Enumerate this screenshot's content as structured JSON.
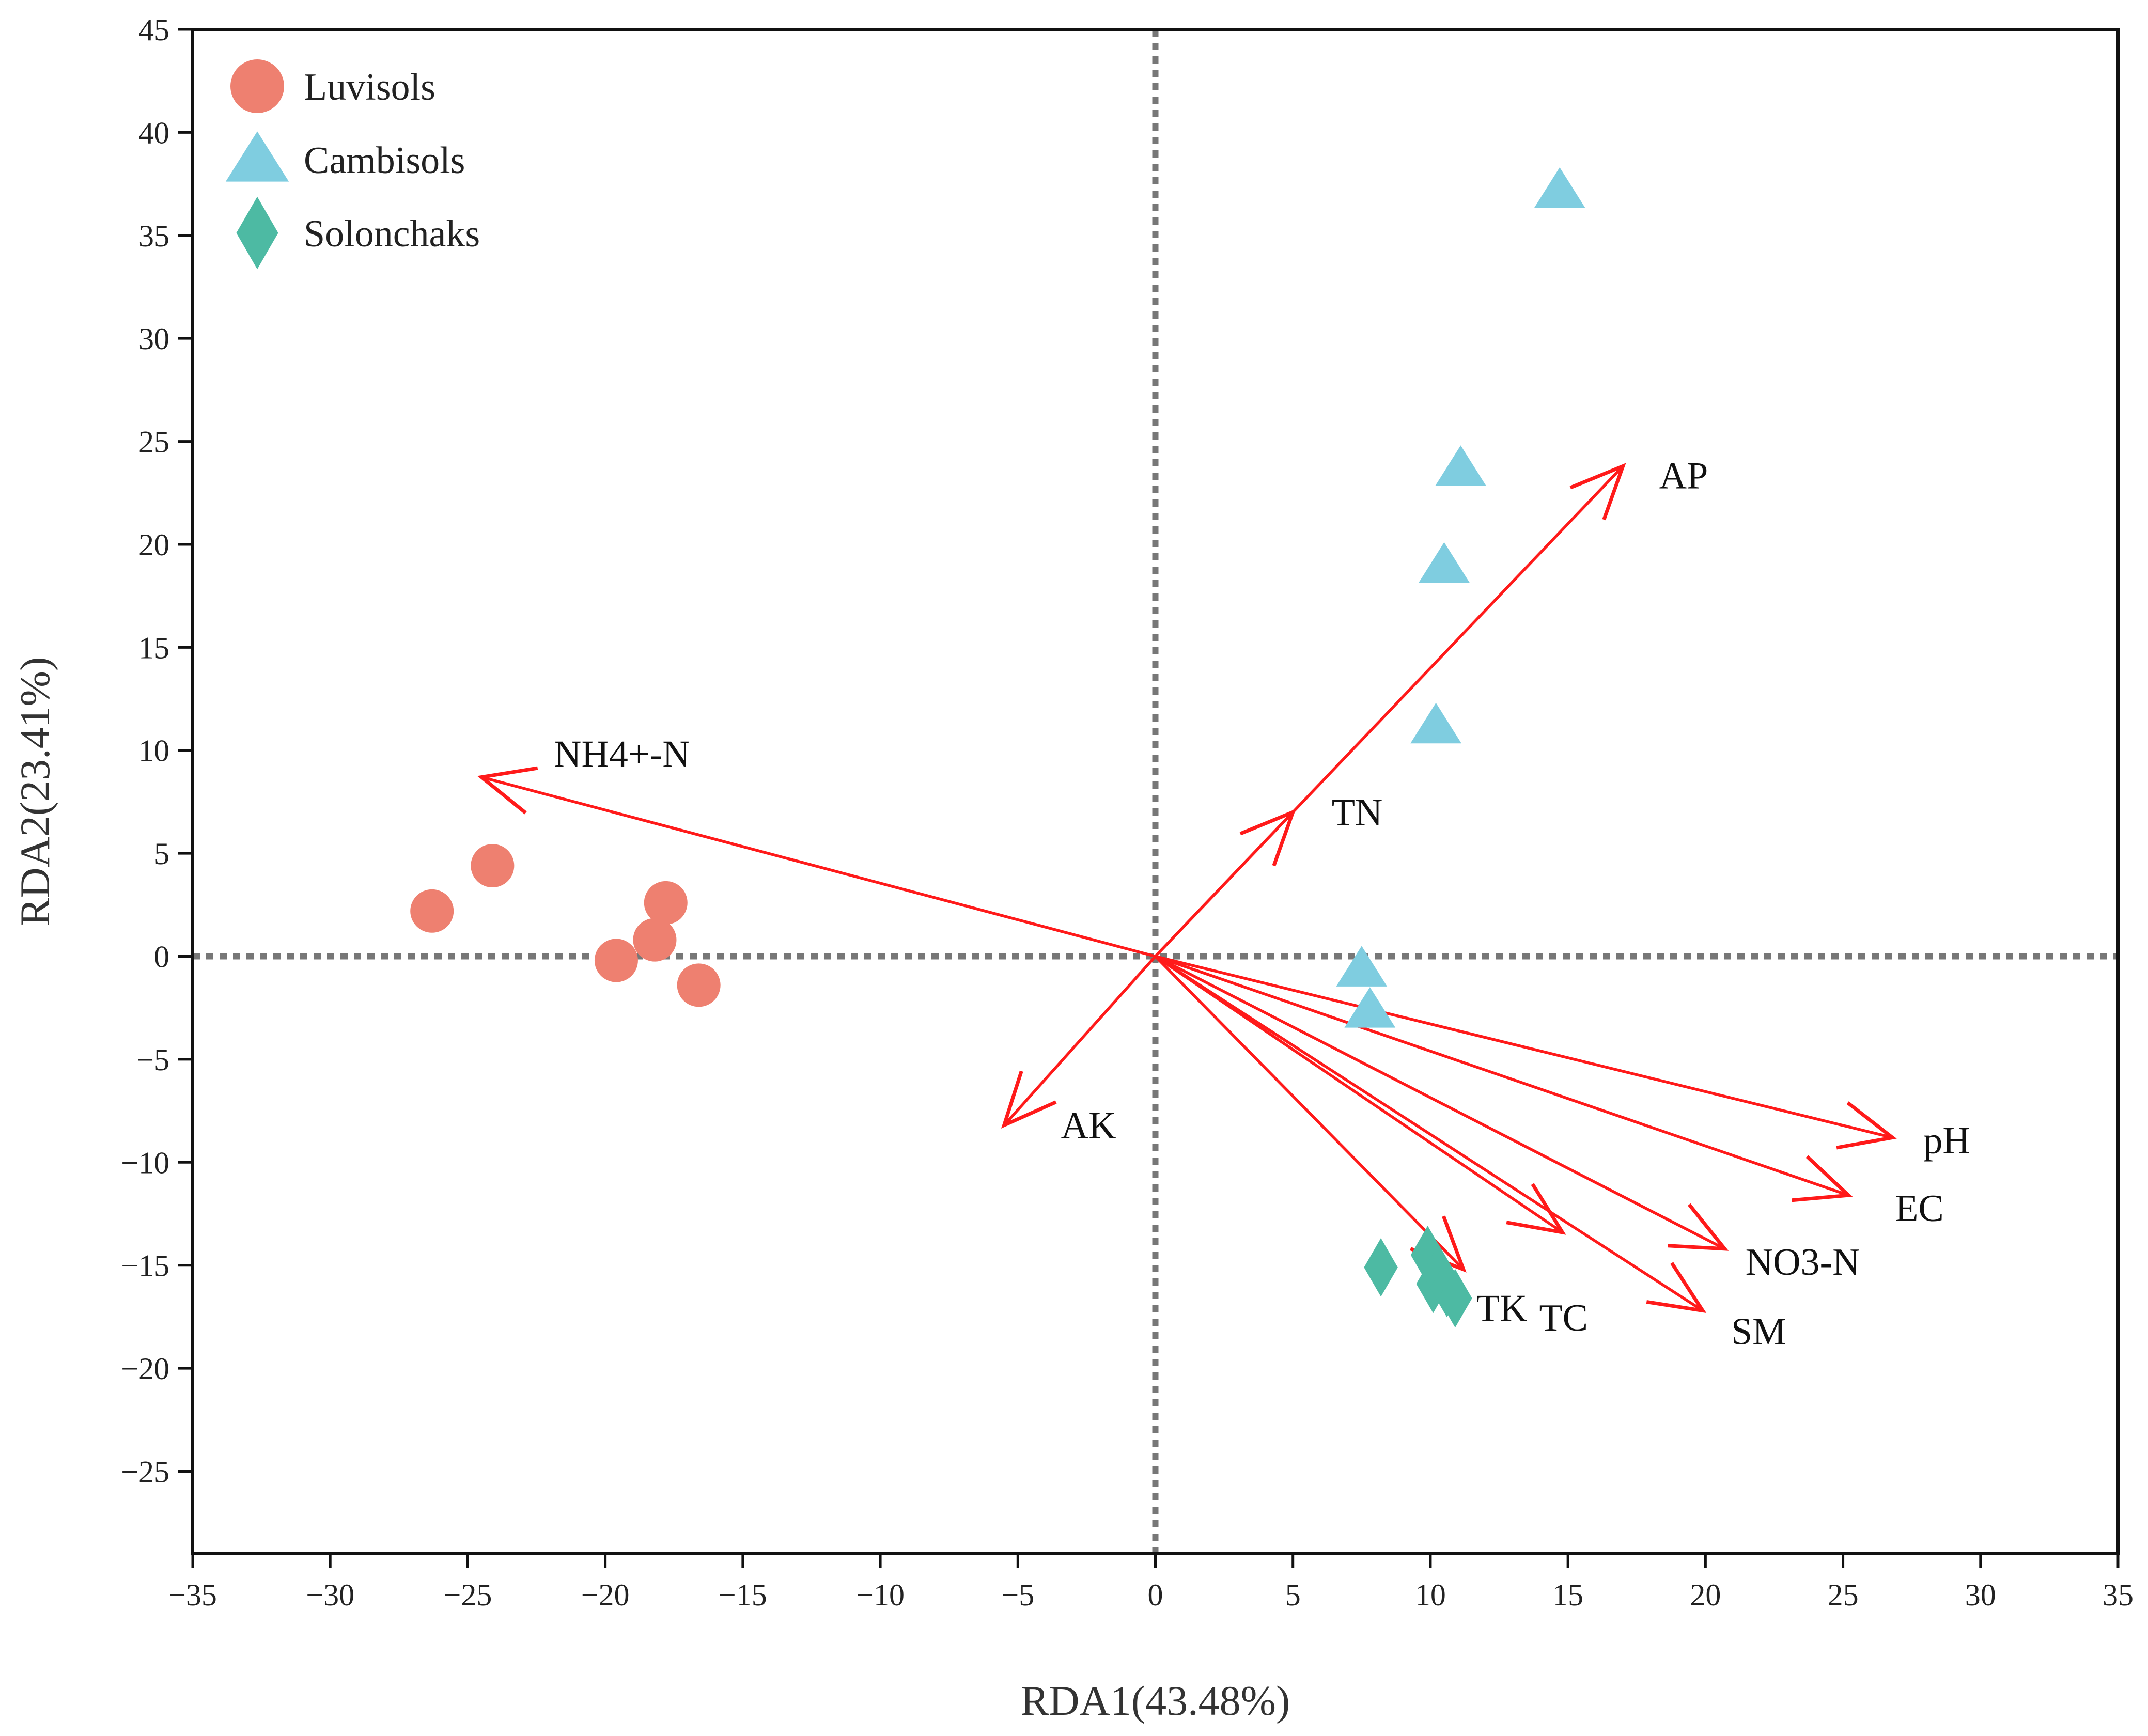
{
  "chart_data": {
    "type": "scatter",
    "title": "",
    "xlabel": "RDA1(43.48%)",
    "ylabel": "RDA2(23.41%)",
    "xlim": [
      -35,
      35
    ],
    "ylim": [
      -29,
      45
    ],
    "xticks": [
      -35,
      -30,
      -25,
      -20,
      -15,
      -10,
      -5,
      0,
      5,
      10,
      15,
      20,
      25,
      30,
      35
    ],
    "yticks": [
      -25,
      -20,
      -15,
      -10,
      -5,
      0,
      5,
      10,
      15,
      20,
      25,
      30,
      35,
      40,
      45
    ],
    "reference_lines": {
      "x": 0,
      "y": 0,
      "style": "dotted",
      "color": "#777777"
    },
    "legend_position": "top-left",
    "series": [
      {
        "name": "Luvisols",
        "marker": "circle",
        "color": "#ee8070",
        "points": [
          [
            -26.3,
            2.2
          ],
          [
            -24.1,
            4.4
          ],
          [
            -19.6,
            -0.2
          ],
          [
            -18.2,
            0.8
          ],
          [
            -17.8,
            2.6
          ],
          [
            -16.6,
            -1.4
          ]
        ]
      },
      {
        "name": "Cambisols",
        "marker": "triangle",
        "color": "#7fcde0",
        "points": [
          [
            14.7,
            37.2
          ],
          [
            11.1,
            23.7
          ],
          [
            10.5,
            19.0
          ],
          [
            10.2,
            11.2
          ],
          [
            7.5,
            -0.6
          ],
          [
            7.8,
            -2.6
          ]
        ]
      },
      {
        "name": "Solonchaks",
        "marker": "diamond",
        "color": "#4dbaa3",
        "points": [
          [
            8.2,
            -15.1
          ],
          [
            9.9,
            -14.5
          ],
          [
            10.1,
            -15.9
          ],
          [
            10.3,
            -15.4
          ],
          [
            10.6,
            -16.1
          ],
          [
            10.9,
            -16.6
          ]
        ]
      }
    ],
    "vectors": {
      "color": "#ff1a1a",
      "items": [
        {
          "label": "AP",
          "x": 17.0,
          "y": 23.8
        },
        {
          "label": "TN",
          "x": 5.0,
          "y": 7.0
        },
        {
          "label": "NH4+-N",
          "x": -24.5,
          "y": 8.7
        },
        {
          "label": "AK",
          "x": -5.5,
          "y": -8.2
        },
        {
          "label": "pH",
          "x": 26.8,
          "y": -8.8
        },
        {
          "label": "EC",
          "x": 25.2,
          "y": -11.6
        },
        {
          "label": "NO3-N",
          "x": 20.7,
          "y": -14.2
        },
        {
          "label": "SM",
          "x": 19.9,
          "y": -17.2
        },
        {
          "label": "TC",
          "x": 14.8,
          "y": -13.4
        },
        {
          "label": "TK",
          "x": 11.2,
          "y": -15.2
        }
      ]
    }
  }
}
